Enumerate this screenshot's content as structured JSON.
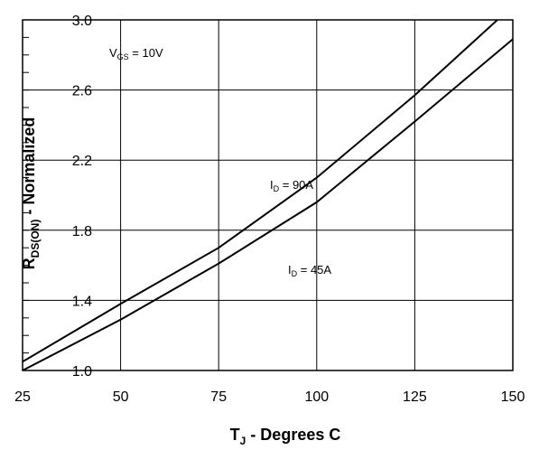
{
  "chart_data": {
    "type": "line",
    "xlabel": {
      "main": "T",
      "sub": "J",
      "rest": " - Degrees C"
    },
    "ylabel": {
      "main": "R",
      "sub": "DS(ON)",
      "rest": " - Normalized"
    },
    "xlim": [
      25,
      150
    ],
    "ylim": [
      1.0,
      3.0
    ],
    "x_ticks": [
      25,
      50,
      75,
      100,
      125,
      150
    ],
    "y_ticks": [
      1.0,
      1.4,
      1.8,
      2.2,
      2.6,
      3.0
    ],
    "y_tick_labels": [
      "1.0",
      "1.4",
      "1.8",
      "2.2",
      "2.6",
      "3.0"
    ],
    "y_minor_step": 0.1,
    "grid": true,
    "annotations": [
      {
        "main": "V",
        "sub": "GS",
        "rest": " = 10V"
      },
      {
        "main": "I",
        "sub": "D",
        "rest": " = 90A"
      },
      {
        "main": "I",
        "sub": "D",
        "rest": " = 45A"
      }
    ],
    "series": [
      {
        "x": [
          25,
          50,
          75,
          100,
          125,
          150
        ],
        "y": [
          1.05,
          1.38,
          1.7,
          2.1,
          2.57,
          3.08
        ]
      },
      {
        "x": [
          25,
          50,
          75,
          100,
          125,
          150
        ],
        "y": [
          1.0,
          1.29,
          1.61,
          1.96,
          2.42,
          2.89
        ]
      }
    ]
  }
}
